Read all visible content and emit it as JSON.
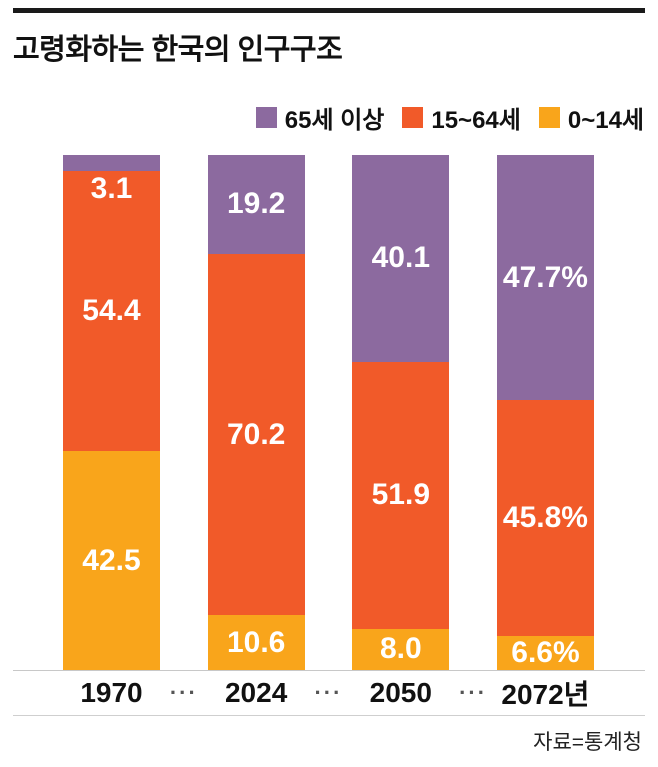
{
  "title": "고령화하는 한국의 인구구조",
  "source": "자료=통계청",
  "x_axis": {
    "separator": "···"
  },
  "chart_data": {
    "type": "bar",
    "stacked": true,
    "title": "고령화하는 한국의 인구구조",
    "unit": "%",
    "ylim": [
      0,
      100
    ],
    "grid": false,
    "legend_position": "top-right",
    "categories": [
      "1970",
      "2024",
      "2050",
      "2072년"
    ],
    "series": [
      {
        "name": "65세 이상",
        "color": "#8c6a9f",
        "values": [
          3.1,
          19.2,
          40.1,
          47.7
        ],
        "labels": [
          "3.1",
          "19.2",
          "40.1",
          "47.7%"
        ]
      },
      {
        "name": "15~64세",
        "color": "#f15a29",
        "values": [
          54.4,
          70.2,
          51.9,
          45.8
        ],
        "labels": [
          "54.4",
          "70.2",
          "51.9",
          "45.8%"
        ]
      },
      {
        "name": "0~14세",
        "color": "#f9a51b",
        "values": [
          42.5,
          10.6,
          8.0,
          6.6
        ],
        "labels": [
          "42.5",
          "10.6",
          "8.0",
          "6.6%"
        ]
      }
    ]
  }
}
